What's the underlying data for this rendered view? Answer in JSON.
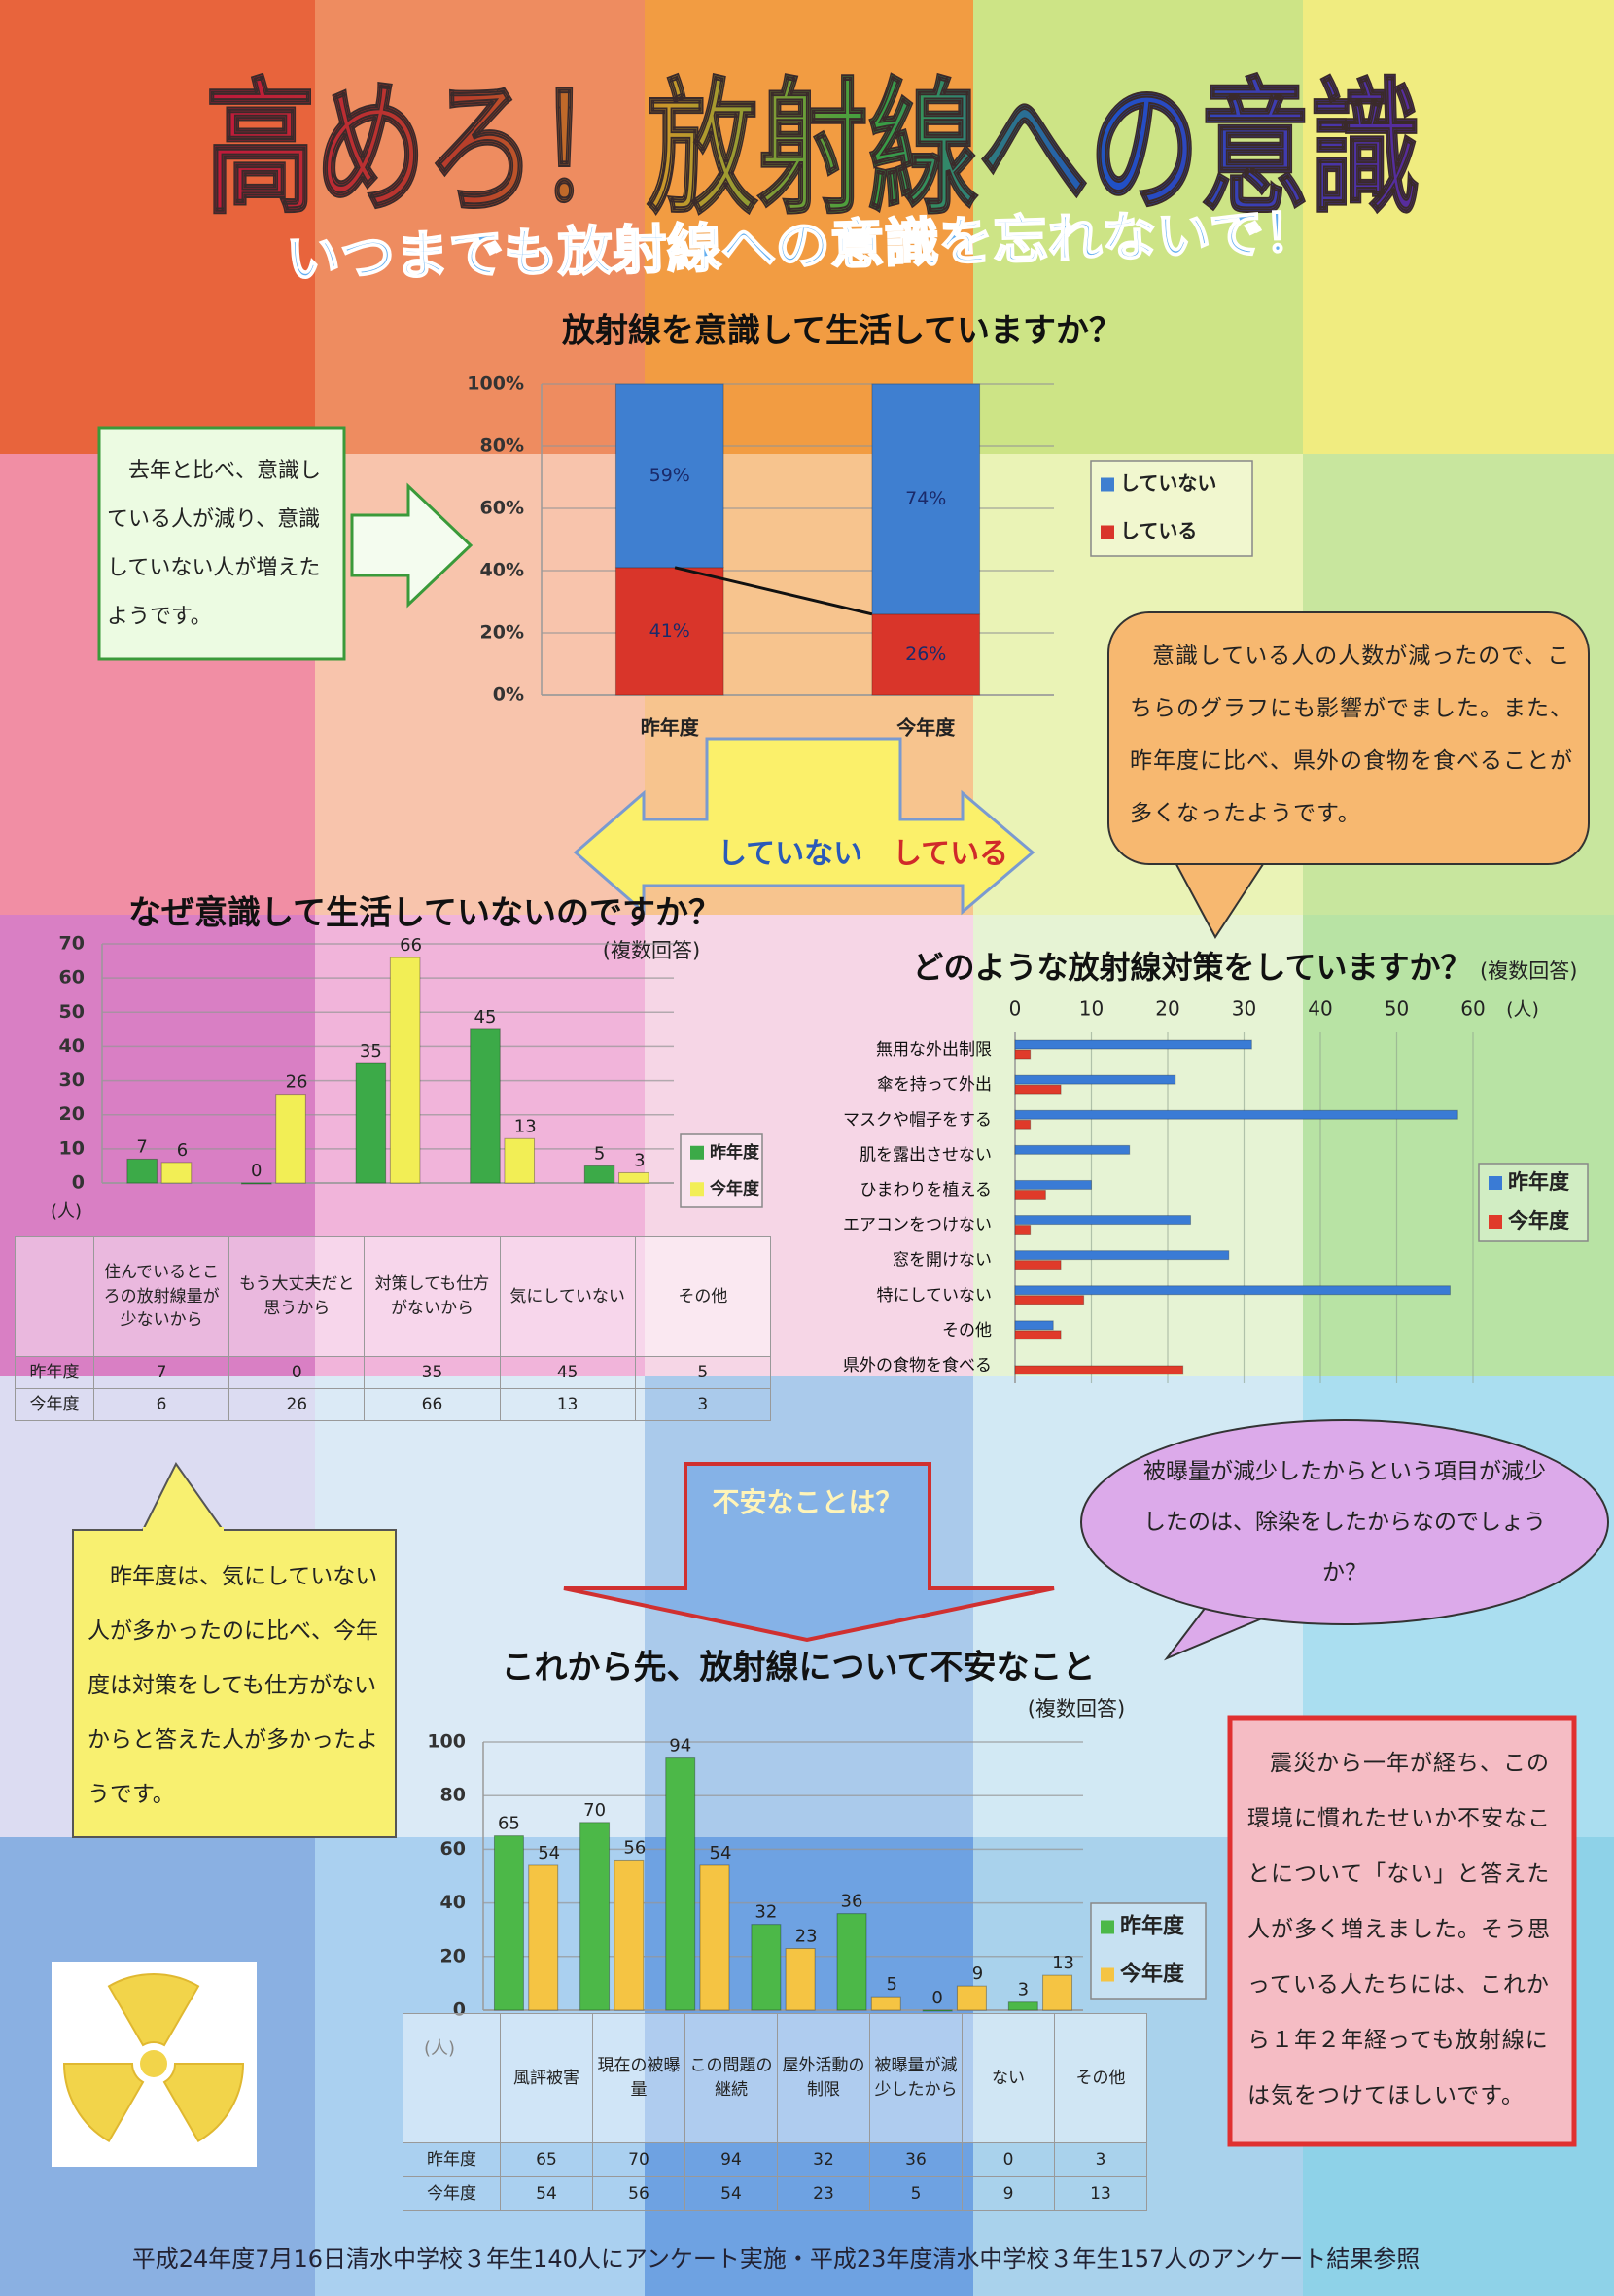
{
  "header": {
    "title": "高めろ！放射線への意識",
    "subtitle": "いつまでも放射線への意識を忘れないで！"
  },
  "chart_data": [
    {
      "type": "bar",
      "stacked": true,
      "title": "放射線を意識して生活していますか？",
      "categories": [
        "昨年度",
        "今年度"
      ],
      "series": [
        {
          "name": "していない",
          "color": "#3f7fd0",
          "values": [
            59,
            74
          ],
          "value_labels": [
            "59%",
            "74%"
          ]
        },
        {
          "name": "している",
          "color": "#d9352a",
          "values": [
            41,
            26
          ],
          "value_labels": [
            "41%",
            "26%"
          ]
        }
      ],
      "ylim": [
        0,
        100
      ],
      "yticks": [
        {
          "value": 0,
          "label": "0%"
        },
        {
          "value": 20,
          "label": "20%"
        },
        {
          "value": 40,
          "label": "40%"
        },
        {
          "value": 60,
          "label": "60%"
        },
        {
          "value": 80,
          "label": "80%"
        },
        {
          "value": 100,
          "label": "100%"
        }
      ],
      "grid": true
    },
    {
      "type": "bar",
      "title": "なぜ意識して生活していないのですか？",
      "subtitle": "(複数回答)",
      "y_unit_label": "(人)",
      "categories": [
        "住んでいるところの放射線量が少ないから",
        "もう大丈夫だと思うから",
        "対策しても仕方がないから",
        "気にしていない",
        "その他"
      ],
      "series": [
        {
          "name": "昨年度",
          "color": "#3caa48",
          "values": [
            7,
            0,
            35,
            45,
            5
          ]
        },
        {
          "name": "今年度",
          "color": "#f2ee55",
          "values": [
            6,
            26,
            66,
            13,
            3
          ]
        }
      ],
      "ylim": [
        0,
        70
      ],
      "yticks": [
        0,
        10,
        20,
        30,
        40,
        50,
        60,
        70
      ],
      "grid": true
    },
    {
      "type": "bar",
      "orientation": "horizontal",
      "title": "どのような放射線対策をしていますか？",
      "subtitle": "(複数回答)",
      "x_unit_label": "(人)",
      "categories": [
        "無用な外出制限",
        "傘を持って外出",
        "マスクや帽子をする",
        "肌を露出させない",
        "ひまわりを植える",
        "エアコンをつけない",
        "窓を開けない",
        "特にしていない",
        "その他",
        "県外の食物を食べる"
      ],
      "series": [
        {
          "name": "昨年度",
          "color": "#3a7bd5",
          "values": [
            31,
            21,
            58,
            15,
            10,
            23,
            28,
            57,
            5,
            0
          ]
        },
        {
          "name": "今年度",
          "color": "#e03a2a",
          "values": [
            2,
            6,
            2,
            0,
            4,
            2,
            6,
            9,
            6,
            22
          ]
        }
      ],
      "xlim": [
        0,
        60
      ],
      "xticks": [
        0,
        10,
        20,
        30,
        40,
        50,
        60
      ],
      "grid": true
    },
    {
      "type": "bar",
      "title": "これから先、放射線について不安なこと",
      "subtitle": "(複数回答)",
      "y_unit_label": "(人)",
      "categories": [
        "風評被害",
        "現在の被曝量",
        "この問題の継続",
        "屋外活動の制限",
        "被曝量が減少したから",
        "ない",
        "その他"
      ],
      "series": [
        {
          "name": "昨年度",
          "color": "#4cb848",
          "values": [
            65,
            70,
            94,
            32,
            36,
            0,
            3
          ]
        },
        {
          "name": "今年度",
          "color": "#f5c443",
          "values": [
            54,
            56,
            54,
            23,
            5,
            9,
            13
          ]
        }
      ],
      "ylim": [
        0,
        100
      ],
      "yticks": [
        0,
        20,
        40,
        60,
        80,
        100
      ],
      "grid": true
    }
  ],
  "arrow_labels": [
    "していない",
    "している"
  ],
  "notes": {
    "awareness": "去年と比べ、意識している人が減り、意識していない人が増えたようです。",
    "measures": "意識している人の人数が減ったので、こちらのグラフにも影響がでました。また、昨年度に比べ、県外の食物を食べることが多くなったようです。",
    "worry_prompt": "不安なことは？",
    "decontamination": "被曝量が減少したからという項目が減少したのは、除染をしたからなのでしょうか？",
    "reason": "昨年度は、気にしていない人が多かったのに比べ、今年度は対策をしても仕方がないからと答えた人が多かったようです。",
    "conclusion": "震災から一年が経ち、この環境に慣れたせいか不安なことについて「ない」と答えた人が多く増えました。そう思っている人たちには、これから１年２年経っても放射線には気をつけてほしいです。"
  },
  "footer": "平成24年度7月16日清水中学校３年生140人にアンケート実施・平成23年度清水中学校３年生157人のアンケート結果参照"
}
